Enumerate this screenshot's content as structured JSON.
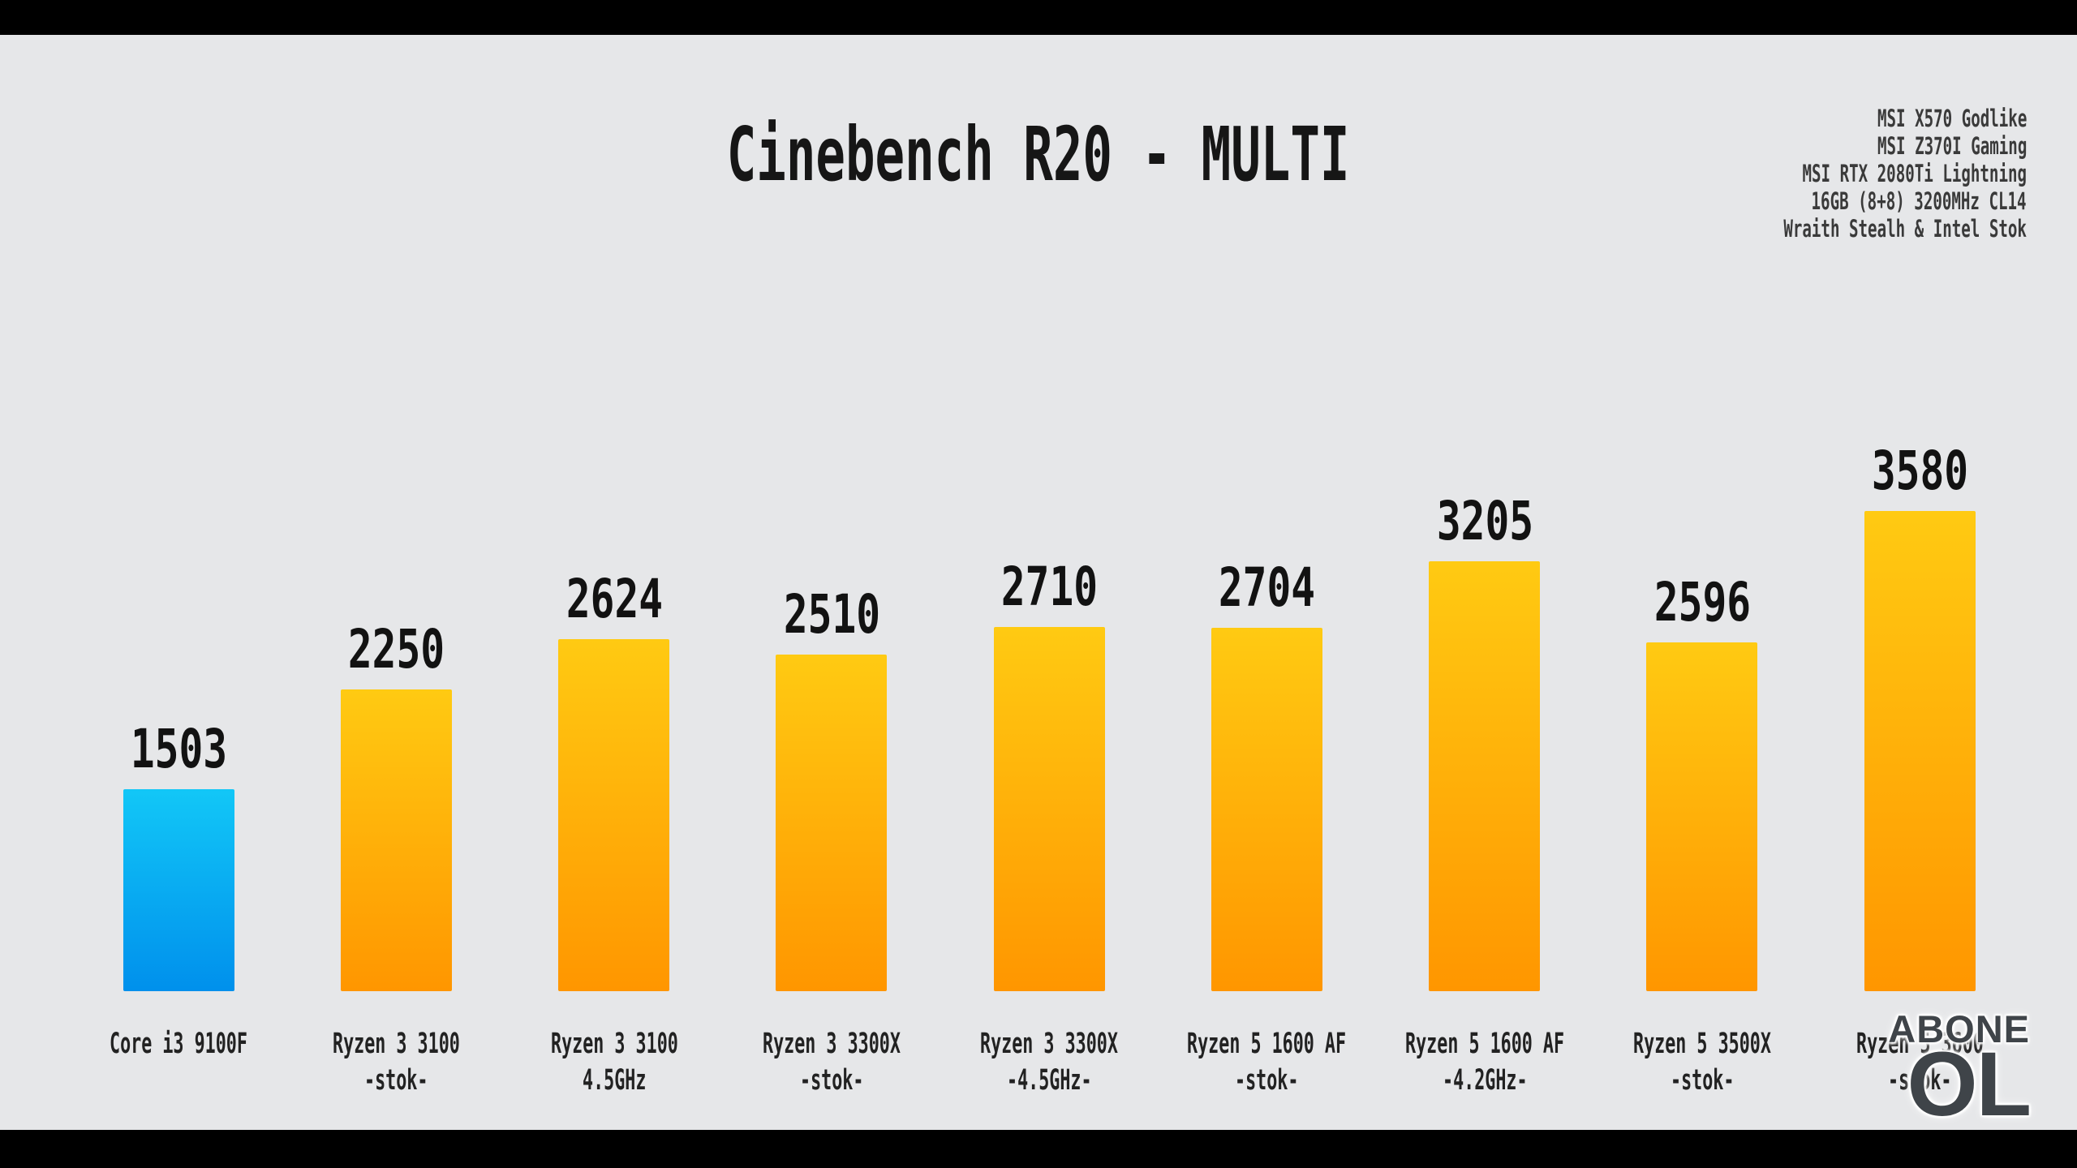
{
  "chart_data": {
    "type": "bar",
    "title": "Cinebench R20 - MULTI",
    "xlabel": "",
    "ylabel": "",
    "ylim": [
      0,
      3800
    ],
    "grid": false,
    "legend": null,
    "categories": [
      {
        "line1": "Core i3 9100F",
        "line2": ""
      },
      {
        "line1": "Ryzen 3 3100",
        "line2": "-stok-"
      },
      {
        "line1": "Ryzen 3 3100",
        "line2": "4.5GHz"
      },
      {
        "line1": "Ryzen 3 3300X",
        "line2": "-stok-"
      },
      {
        "line1": "Ryzen 3 3300X",
        "line2": "-4.5GHz-"
      },
      {
        "line1": "Ryzen 5 1600 AF",
        "line2": "-stok-"
      },
      {
        "line1": "Ryzen 5 1600 AF",
        "line2": "-4.2GHz-"
      },
      {
        "line1": "Ryzen 5 3500X",
        "line2": "-stok-"
      },
      {
        "line1": "Ryzen 5 3600",
        "line2": "-stok-"
      }
    ],
    "values": [
      1503,
      2250,
      2624,
      2510,
      2710,
      2704,
      3205,
      2596,
      3580
    ],
    "value_labels": [
      "1503",
      "2250",
      "2624",
      "2510",
      "2710",
      "2704",
      "3205",
      "2596",
      "3580"
    ],
    "bar_style": {
      "default_gradient_top": "#ffca12",
      "default_gradient_bottom": "#ff9600",
      "highlight_index": 0,
      "highlight_gradient_top": "#12c7f7",
      "highlight_gradient_bottom": "#0090ec"
    }
  },
  "specs_box": {
    "lines": [
      "MSI X570 Godlike",
      "MSI Z370I Gaming",
      "MSI RTX 2080Ti Lightning",
      "16GB (8+8) 3200MHz CL14",
      "Wraith Stealh & Intel Stok"
    ]
  },
  "watermark": {
    "line1": "ABONE",
    "line2": "OL"
  },
  "colors": {
    "background": "#e6e7e9",
    "letterbox": "#000000",
    "title_text": "#161616",
    "specs_text": "#3a3a3a",
    "value_text": "#121212",
    "category_text": "#222222",
    "watermark_text": "#3f4449"
  }
}
